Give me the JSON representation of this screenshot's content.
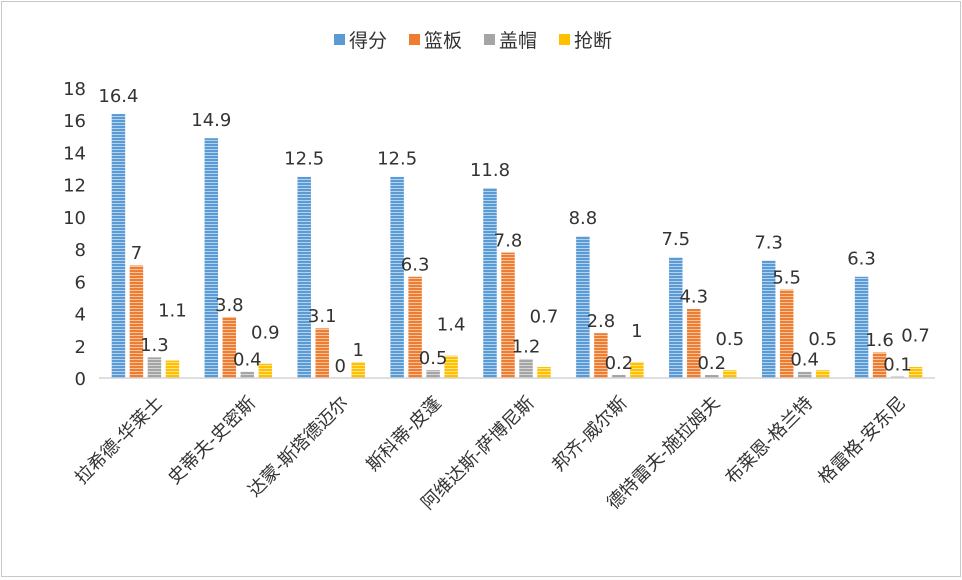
{
  "chart_data": {
    "type": "bar",
    "title": "",
    "xlabel": "",
    "ylabel": "",
    "ylim": [
      0,
      18
    ],
    "yticks": [
      0,
      2,
      4,
      6,
      8,
      10,
      12,
      14,
      16,
      18
    ],
    "grid": false,
    "legend_position": "top",
    "categories": [
      "拉希德-华莱士",
      "史蒂夫-史密斯",
      "达蒙-斯塔德迈尔",
      "斯科蒂-皮蓬",
      "阿维达斯-萨博尼斯",
      "邦齐-威尔斯",
      "德特雷夫-施拉姆夫",
      "布莱恩-格兰特",
      "格雷格-安东尼"
    ],
    "series": [
      {
        "name": "得分",
        "color": "#5b9bd5",
        "values": [
          16.4,
          14.9,
          12.5,
          12.5,
          11.8,
          8.8,
          7.5,
          7.3,
          6.3
        ]
      },
      {
        "name": "篮板",
        "color": "#ed7d31",
        "values": [
          7,
          3.8,
          3.1,
          6.3,
          7.8,
          2.8,
          4.3,
          5.5,
          1.6
        ]
      },
      {
        "name": "盖帽",
        "color": "#a5a5a5",
        "values": [
          1.3,
          0.4,
          0,
          0.5,
          1.2,
          0.2,
          0.2,
          0.4,
          0.1
        ]
      },
      {
        "name": "抢断",
        "color": "#ffc000",
        "values": [
          1.1,
          0.9,
          1,
          1.4,
          0.7,
          1,
          0.5,
          0.5,
          0.7
        ]
      }
    ]
  }
}
